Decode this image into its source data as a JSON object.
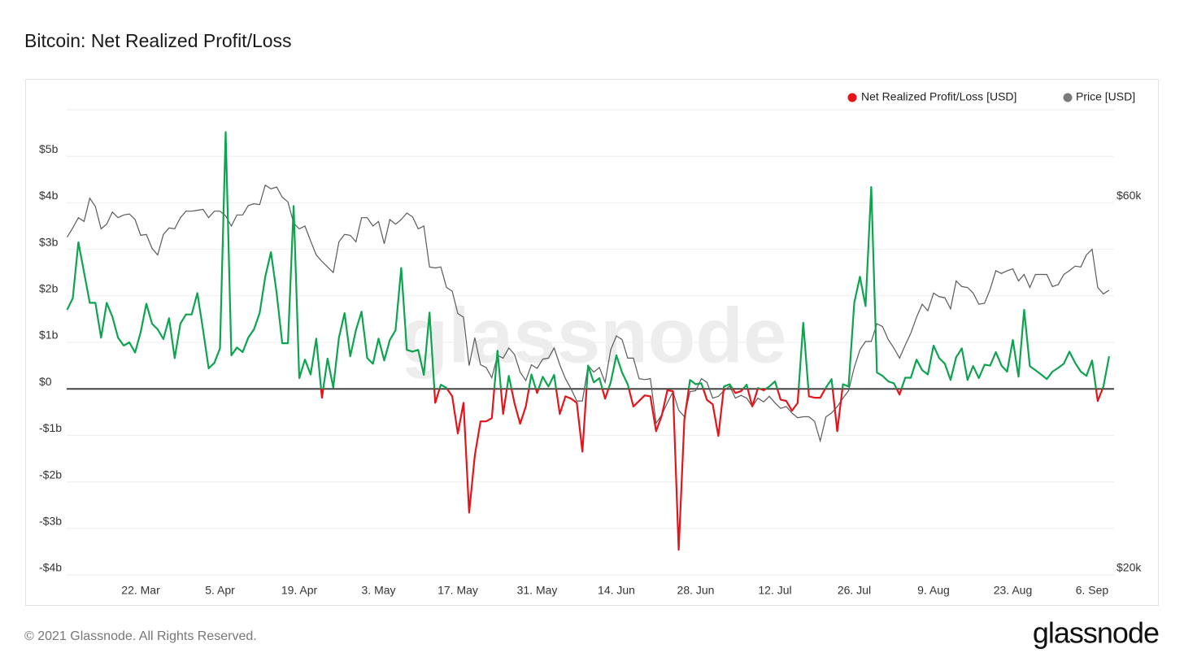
{
  "chart_data": {
    "type": "line",
    "title": "Bitcoin: Net Realized Profit/Loss",
    "watermark": "glassnode",
    "footer": "© 2021 Glassnode. All Rights Reserved.",
    "logo": "glassnode",
    "x": [
      "9. Mar",
      "10. Mar",
      "11. Mar",
      "12. Mar",
      "13. Mar",
      "14. Mar",
      "15. Mar",
      "16. Mar",
      "17. Mar",
      "18. Mar",
      "19. Mar",
      "20. Mar",
      "21. Mar",
      "22. Mar",
      "23. Mar",
      "24. Mar",
      "25. Mar",
      "26. Mar",
      "27. Mar",
      "28. Mar",
      "29. Mar",
      "30. Mar",
      "31. Mar",
      "1. Apr",
      "2. Apr",
      "3. Apr",
      "4. Apr",
      "5. Apr",
      "6. Apr",
      "7. Apr",
      "8. Apr",
      "9. Apr",
      "10. Apr",
      "11. Apr",
      "12. Apr",
      "13. Apr",
      "14. Apr",
      "15. Apr",
      "16. Apr",
      "17. Apr",
      "18. Apr",
      "19. Apr",
      "20. Apr",
      "21. Apr",
      "22. Apr",
      "23. Apr",
      "24. Apr",
      "25. Apr",
      "26. Apr",
      "27. Apr",
      "28. Apr",
      "29. Apr",
      "30. Apr",
      "1. May",
      "2. May",
      "3. May",
      "4. May",
      "5. May",
      "6. May",
      "7. May",
      "8. May",
      "9. May",
      "10. May",
      "11. May",
      "12. May",
      "13. May",
      "14. May",
      "15. May",
      "16. May",
      "17. May",
      "18. May",
      "19. May",
      "20. May",
      "21. May",
      "22. May",
      "23. May",
      "24. May",
      "25. May",
      "26. May",
      "27. May",
      "28. May",
      "29. May",
      "30. May",
      "31. May",
      "1. Jun",
      "2. Jun",
      "3. Jun",
      "4. Jun",
      "5. Jun",
      "6. Jun",
      "7. Jun",
      "8. Jun",
      "9. Jun",
      "10. Jun",
      "11. Jun",
      "12. Jun",
      "13. Jun",
      "14. Jun",
      "15. Jun",
      "16. Jun",
      "17. Jun",
      "18. Jun",
      "19. Jun",
      "20. Jun",
      "21. Jun",
      "22. Jun",
      "23. Jun",
      "24. Jun",
      "25. Jun",
      "26. Jun",
      "27. Jun",
      "28. Jun",
      "29. Jun",
      "30. Jun",
      "1. Jul",
      "2. Jul",
      "3. Jul",
      "4. Jul",
      "5. Jul",
      "6. Jul",
      "7. Jul",
      "8. Jul",
      "9. Jul",
      "10. Jul",
      "11. Jul",
      "12. Jul",
      "13. Jul",
      "14. Jul",
      "15. Jul",
      "16. Jul",
      "17. Jul",
      "18. Jul",
      "19. Jul",
      "20. Jul",
      "21. Jul",
      "22. Jul",
      "23. Jul",
      "24. Jul",
      "25. Jul",
      "26. Jul",
      "27. Jul",
      "28. Jul",
      "29. Jul",
      "30. Jul",
      "31. Jul",
      "1. Aug",
      "2. Aug",
      "3. Aug",
      "4. Aug",
      "5. Aug",
      "6. Aug",
      "7. Aug",
      "8. Aug",
      "9. Aug",
      "10. Aug",
      "11. Aug",
      "12. Aug",
      "13. Aug",
      "14. Aug",
      "15. Aug",
      "16. Aug",
      "17. Aug",
      "18. Aug",
      "19. Aug",
      "20. Aug",
      "21. Aug",
      "22. Aug",
      "23. Aug",
      "24. Aug",
      "25. Aug",
      "26. Aug",
      "27. Aug",
      "28. Aug",
      "29. Aug",
      "30. Aug",
      "31. Aug",
      "1. Sep",
      "2. Sep",
      "3. Sep",
      "4. Sep",
      "5. Sep",
      "6. Sep",
      "7. Sep",
      "8. Sep",
      "9. Sep"
    ],
    "xticks": [
      "22. Mar",
      "5. Apr",
      "19. Apr",
      "3. May",
      "17. May",
      "31. May",
      "14. Jun",
      "28. Jun",
      "12. Jul",
      "26. Jul",
      "9. Aug",
      "23. Aug",
      "6. Sep"
    ],
    "series": [
      {
        "name": "Net Realized Profit/Loss [USD]",
        "color": "#e5141a",
        "positive_color": "#0ca44f",
        "axis": "y",
        "values": [
          1700000000.0,
          1950000000.0,
          3150000000.0,
          2500000000.0,
          1850000000.0,
          1850000000.0,
          1100000000.0,
          1850000000.0,
          1550000000.0,
          1100000000.0,
          930000000.0,
          1000000000.0,
          780000000.0,
          1220000000.0,
          1830000000.0,
          1400000000.0,
          1280000000.0,
          1070000000.0,
          1520000000.0,
          660000000.0,
          1400000000.0,
          1600000000.0,
          1600000000.0,
          2060000000.0,
          1280000000.0,
          440000000.0,
          560000000.0,
          870000000.0,
          5520000000.0,
          720000000.0,
          890000000.0,
          790000000.0,
          1100000000.0,
          1280000000.0,
          1630000000.0,
          2410000000.0,
          2940000000.0,
          2060000000.0,
          980000000.0,
          980000000.0,
          3930000000.0,
          230000000.0,
          630000000.0,
          310000000.0,
          1080000000.0,
          -190000000.0,
          650000000.0,
          30000000.0,
          1100000000.0,
          1630000000.0,
          700000000.0,
          1260000000.0,
          1660000000.0,
          660000000.0,
          540000000.0,
          1080000000.0,
          610000000.0,
          1050000000.0,
          1260000000.0,
          2600000000.0,
          840000000.0,
          800000000.0,
          840000000.0,
          300000000.0,
          1640000000.0,
          -300000000.0,
          90000000.0,
          20000000.0,
          -160000000.0,
          -960000000.0,
          -300000000.0,
          -2660000000.0,
          -1430000000.0,
          -700000000.0,
          -700000000.0,
          -630000000.0,
          820000000.0,
          -540000000.0,
          280000000.0,
          -310000000.0,
          -750000000.0,
          -380000000.0,
          310000000.0,
          -90000000.0,
          260000000.0,
          50000000.0,
          300000000.0,
          -540000000.0,
          -160000000.0,
          -210000000.0,
          -300000000.0,
          -1350000000.0,
          500000000.0,
          140000000.0,
          230000000.0,
          -210000000.0,
          140000000.0,
          720000000.0,
          350000000.0,
          100000000.0,
          -380000000.0,
          -260000000.0,
          -140000000.0,
          -160000000.0,
          -910000000.0,
          -580000000.0,
          -30000000.0,
          -50000000.0,
          -3460000000.0,
          -660000000.0,
          190000000.0,
          100000000.0,
          120000000.0,
          -240000000.0,
          -330000000.0,
          -1010000000.0,
          50000000.0,
          100000000.0,
          -90000000.0,
          -50000000.0,
          90000000.0,
          -380000000.0,
          20000000.0,
          -30000000.0,
          50000000.0,
          160000000.0,
          -230000000.0,
          -260000000.0,
          -470000000.0,
          -300000000.0,
          1420000000.0,
          -160000000.0,
          -190000000.0,
          -190000000.0,
          30000000.0,
          210000000.0,
          -910000000.0,
          100000000.0,
          50000000.0,
          1850000000.0,
          2410000000.0,
          1780000000.0,
          4340000000.0,
          350000000.0,
          280000000.0,
          160000000.0,
          120000000.0,
          -120000000.0,
          240000000.0,
          240000000.0,
          630000000.0,
          400000000.0,
          310000000.0,
          930000000.0,
          660000000.0,
          540000000.0,
          190000000.0,
          680000000.0,
          870000000.0,
          190000000.0,
          490000000.0,
          230000000.0,
          520000000.0,
          500000000.0,
          790000000.0,
          500000000.0,
          370000000.0,
          1050000000.0,
          260000000.0,
          1700000000.0,
          490000000.0,
          400000000.0,
          310000000.0,
          210000000.0,
          370000000.0,
          450000000.0,
          540000000.0,
          800000000.0,
          560000000.0,
          370000000.0,
          280000000.0,
          610000000.0,
          -260000000.0,
          50000000.0,
          700000000.0
        ]
      },
      {
        "name": "Price [USD]",
        "color": "#7b7b7b",
        "line_color": "#5a5a5a",
        "axis": "y2",
        "values": [
          56300,
          57300,
          58400,
          58000,
          60500,
          59600,
          57200,
          57700,
          59000,
          58400,
          58700,
          58800,
          58200,
          56500,
          56600,
          55100,
          54400,
          56600,
          57300,
          57200,
          58400,
          59100,
          59100,
          59200,
          59300,
          58400,
          59100,
          59100,
          58600,
          57500,
          58700,
          58700,
          59700,
          59900,
          59800,
          61900,
          61500,
          61700,
          60600,
          60100,
          57800,
          57200,
          57500,
          55900,
          54400,
          53700,
          53100,
          52500,
          55800,
          56600,
          56500,
          55800,
          58400,
          58400,
          57500,
          58000,
          55600,
          58200,
          57700,
          58200,
          58900,
          58500,
          57200,
          57500,
          53100,
          53000,
          53100,
          50900,
          50500,
          48100,
          47700,
          42500,
          45500,
          42600,
          42300,
          41200,
          43600,
          43300,
          44400,
          43700,
          41800,
          40900,
          42600,
          42200,
          43200,
          43300,
          44400,
          42600,
          41100,
          40000,
          38700,
          38700,
          42500,
          41800,
          42300,
          40700,
          44200,
          45700,
          45300,
          43300,
          43300,
          41100,
          41000,
          41100,
          36300,
          37200,
          38500,
          39700,
          37700,
          37000,
          39700,
          39800,
          41100,
          40700,
          39000,
          39200,
          39800,
          40300,
          39000,
          39300,
          39000,
          38100,
          39000,
          38600,
          39200,
          38500,
          37900,
          38100,
          37400,
          36900,
          37000,
          37000,
          36500,
          34400,
          37000,
          37400,
          38100,
          39000,
          39800,
          42300,
          44200,
          45100,
          45100,
          47000,
          46700,
          45300,
          44400,
          43300,
          44700,
          46000,
          47700,
          49100,
          48400,
          50300,
          49900,
          49800,
          48600,
          51600,
          51000,
          50900,
          50300,
          49100,
          49200,
          50700,
          52700,
          52400,
          52700,
          52900,
          51600,
          52300,
          50900,
          52300,
          52300,
          52300,
          51000,
          51200,
          52300,
          52700,
          53200,
          53100,
          54400,
          55000,
          50900,
          50200,
          50600
        ]
      }
    ],
    "ylim": [
      -4000000000.0,
      6000000000.0
    ],
    "yticks": [
      {
        "value": -4000000000.0,
        "label": "-$4b"
      },
      {
        "value": -3000000000.0,
        "label": "-$3b"
      },
      {
        "value": -2000000000.0,
        "label": "-$2b"
      },
      {
        "value": -1000000000.0,
        "label": "-$1b"
      },
      {
        "value": 0,
        "label": "$0"
      },
      {
        "value": 1000000000.0,
        "label": "$1b"
      },
      {
        "value": 2000000000.0,
        "label": "$2b"
      },
      {
        "value": 3000000000.0,
        "label": "$3b"
      },
      {
        "value": 4000000000.0,
        "label": "$4b"
      },
      {
        "value": 5000000000.0,
        "label": "$5b"
      }
    ],
    "y2lim": [
      20000,
      70000
    ],
    "y2ticks": [
      {
        "value": 20000,
        "label": "$20k"
      },
      {
        "value": 60000,
        "label": "$60k"
      }
    ],
    "grid": true,
    "legend": "top-right"
  }
}
